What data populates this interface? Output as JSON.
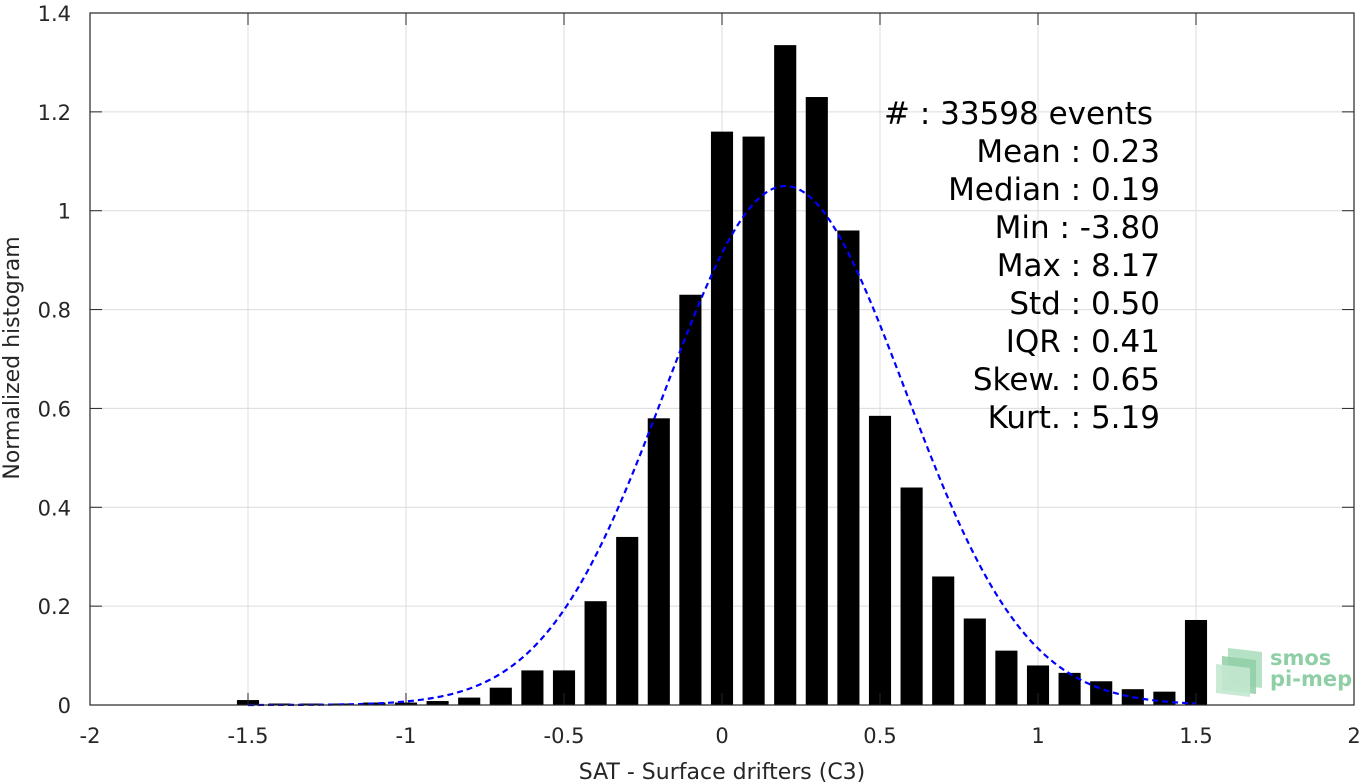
{
  "chart_data": {
    "type": "bar",
    "xlabel": "SAT - Surface drifters (C3)",
    "ylabel": "Normalized histogram",
    "xlim": [
      -2,
      2
    ],
    "ylim": [
      0,
      1.4
    ],
    "xticks": [
      "-2",
      "-1.5",
      "-1",
      "-0.5",
      "0",
      "0.5",
      "1",
      "1.5",
      "2"
    ],
    "yticks": [
      "0",
      "0.2",
      "0.4",
      "0.6",
      "0.8",
      "1",
      "1.2",
      "1.4"
    ],
    "grid": true,
    "bar_color": "#000000",
    "bar_width": 0.07,
    "bins": [
      {
        "x": -1.5,
        "value": 0.01
      },
      {
        "x": -1.4,
        "value": 0.003
      },
      {
        "x": -1.3,
        "value": 0.003
      },
      {
        "x": -1.2,
        "value": 0.003
      },
      {
        "x": -1.1,
        "value": 0.005
      },
      {
        "x": -1.0,
        "value": 0.005
      },
      {
        "x": -0.9,
        "value": 0.008
      },
      {
        "x": -0.8,
        "value": 0.015
      },
      {
        "x": -0.7,
        "value": 0.035
      },
      {
        "x": -0.6,
        "value": 0.07
      },
      {
        "x": -0.5,
        "value": 0.07
      },
      {
        "x": -0.4,
        "value": 0.21
      },
      {
        "x": -0.3,
        "value": 0.34
      },
      {
        "x": -0.2,
        "value": 0.58
      },
      {
        "x": -0.1,
        "value": 0.83
      },
      {
        "x": 0.0,
        "value": 1.16
      },
      {
        "x": 0.1,
        "value": 1.15
      },
      {
        "x": 0.2,
        "value": 1.335
      },
      {
        "x": 0.3,
        "value": 1.23
      },
      {
        "x": 0.4,
        "value": 0.96
      },
      {
        "x": 0.5,
        "value": 0.585
      },
      {
        "x": 0.6,
        "value": 0.44
      },
      {
        "x": 0.7,
        "value": 0.26
      },
      {
        "x": 0.8,
        "value": 0.175
      },
      {
        "x": 0.9,
        "value": 0.11
      },
      {
        "x": 1.0,
        "value": 0.08
      },
      {
        "x": 1.1,
        "value": 0.065
      },
      {
        "x": 1.2,
        "value": 0.048
      },
      {
        "x": 1.3,
        "value": 0.032
      },
      {
        "x": 1.4,
        "value": 0.027
      },
      {
        "x": 1.5,
        "value": 0.172
      }
    ],
    "fit_curve": {
      "type": "gaussian",
      "style": "dashed",
      "color": "#0000ff",
      "mean": 0.2,
      "std": 0.38,
      "peak": 1.05
    },
    "stats": [
      "#  : 33598 events",
      "Mean : 0.23",
      "Median : 0.19",
      "Min : -3.80",
      "Max : 8.17",
      "Std : 0.50",
      "IQR : 0.41",
      "Skew. : 0.65",
      "Kurt. : 5.19"
    ],
    "logo": {
      "line1": "smos",
      "line2": "pi-mep",
      "color": "#8fcfa6"
    }
  }
}
